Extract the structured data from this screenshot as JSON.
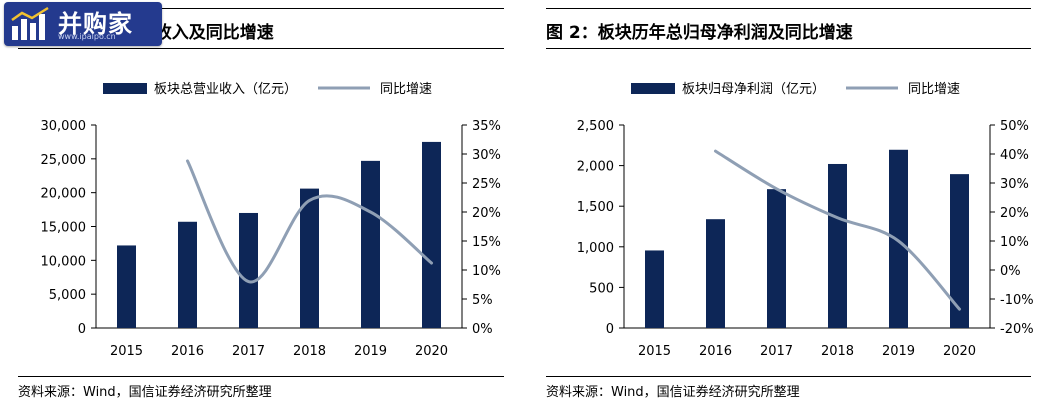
{
  "figures": [
    {
      "title": "图 1：板块总营业收入及同比增速",
      "source": "资料来源：Wind，国信证券经济研究所整理"
    },
    {
      "title": "图 2：板块历年总归母净利润及同比增速",
      "source": "资料来源：Wind，国信证券经济研究所整理"
    }
  ],
  "watermark": {
    "name": "并购家",
    "url": "www.ipaipo.cn"
  },
  "chart_data": [
    {
      "type": "bar",
      "categories": [
        "2015",
        "2016",
        "2017",
        "2018",
        "2019",
        "2020"
      ],
      "series": [
        {
          "name": "板块总营业收入（亿元）",
          "type": "bar",
          "axis": "left",
          "values": [
            12200,
            15700,
            17000,
            20600,
            24700,
            27500
          ],
          "color": "#0d2657"
        },
        {
          "name": "同比增速",
          "type": "line",
          "axis": "right",
          "values": [
            null,
            0.288,
            0.08,
            0.22,
            0.2,
            0.112
          ],
          "color": "#8f9fb4"
        }
      ],
      "y_left": {
        "min": 0,
        "max": 30000,
        "ticks": [
          0,
          5000,
          10000,
          15000,
          20000,
          25000,
          30000
        ],
        "tick_labels": [
          "0",
          "5,000",
          "10,000",
          "15,000",
          "20,000",
          "25,000",
          "30,000"
        ]
      },
      "y_right": {
        "min": 0,
        "max": 0.35,
        "ticks": [
          0,
          0.05,
          0.1,
          0.15,
          0.2,
          0.25,
          0.3,
          0.35
        ],
        "tick_labels": [
          "0%",
          "5%",
          "10%",
          "15%",
          "20%",
          "25%",
          "30%",
          "35%"
        ]
      },
      "legend_position": "top",
      "grid": false
    },
    {
      "type": "bar",
      "categories": [
        "2015",
        "2016",
        "2017",
        "2018",
        "2019",
        "2020"
      ],
      "series": [
        {
          "name": "板块归母净利润（亿元）",
          "type": "bar",
          "axis": "left",
          "values": [
            955,
            1340,
            1710,
            2020,
            2195,
            1895
          ],
          "color": "#0d2657"
        },
        {
          "name": "同比增速",
          "type": "line",
          "axis": "right",
          "values": [
            null,
            0.41,
            0.28,
            0.18,
            0.1,
            -0.135
          ],
          "color": "#8f9fb4"
        }
      ],
      "y_left": {
        "min": 0,
        "max": 2500,
        "ticks": [
          0,
          500,
          1000,
          1500,
          2000,
          2500
        ],
        "tick_labels": [
          "0",
          "500",
          "1,000",
          "1,500",
          "2,000",
          "2,500"
        ]
      },
      "y_right": {
        "min": -0.2,
        "max": 0.5,
        "ticks": [
          -0.2,
          -0.1,
          0,
          0.1,
          0.2,
          0.3,
          0.4,
          0.5
        ],
        "tick_labels": [
          "-20%",
          "-10%",
          "0%",
          "10%",
          "20%",
          "30%",
          "40%",
          "50%"
        ]
      },
      "legend_position": "top",
      "grid": false
    }
  ]
}
